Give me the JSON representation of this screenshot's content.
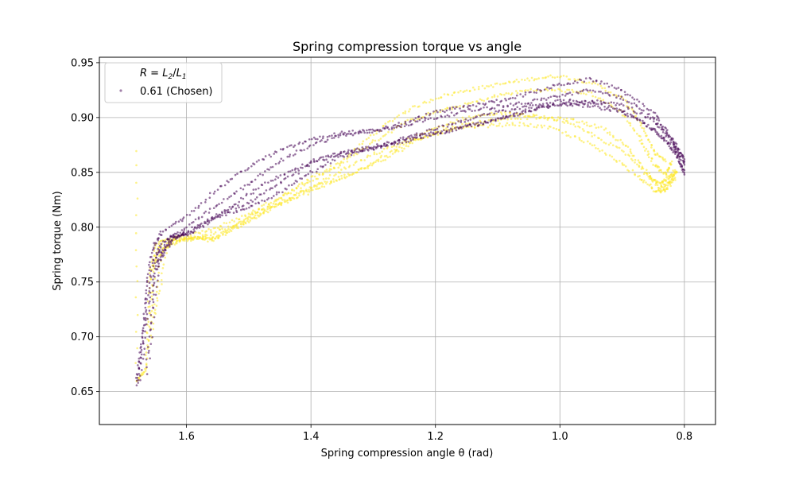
{
  "chart_data": {
    "type": "scatter",
    "title": "Spring compression torque vs angle",
    "xlabel": "Spring compression angle θ (rad)",
    "ylabel": "Spring torque (Nm)",
    "xlim": [
      1.74,
      0.75
    ],
    "ylim": [
      0.62,
      0.955
    ],
    "x_inverted": true,
    "xticks": [
      1.6,
      1.4,
      1.2,
      1.0,
      0.8
    ],
    "xtick_labels": [
      "1.6",
      "1.4",
      "1.2",
      "1.0",
      "0.8"
    ],
    "yticks": [
      0.65,
      0.7,
      0.75,
      0.8,
      0.85,
      0.9,
      0.95
    ],
    "ytick_labels": [
      "0.65",
      "0.70",
      "0.75",
      "0.80",
      "0.85",
      "0.90",
      "0.95"
    ],
    "grid": true,
    "legend": {
      "placement": "top-left",
      "title": "R = L2/L1",
      "entries": [
        "0.61 (Chosen)"
      ]
    },
    "series": [
      {
        "name": "0.61 (Chosen)",
        "color": "#440154",
        "traces": [
          [
            [
              1.68,
              0.655
            ],
            [
              1.672,
              0.69
            ],
            [
              1.665,
              0.74
            ],
            [
              1.655,
              0.78
            ],
            [
              1.64,
              0.795
            ],
            [
              1.6,
              0.81
            ],
            [
              1.55,
              0.835
            ],
            [
              1.5,
              0.855
            ],
            [
              1.45,
              0.87
            ],
            [
              1.4,
              0.88
            ],
            [
              1.35,
              0.886
            ],
            [
              1.3,
              0.888
            ],
            [
              1.25,
              0.895
            ],
            [
              1.2,
              0.905
            ],
            [
              1.15,
              0.91
            ],
            [
              1.1,
              0.915
            ],
            [
              1.05,
              0.922
            ],
            [
              1.0,
              0.93
            ],
            [
              0.95,
              0.935
            ],
            [
              0.9,
              0.925
            ],
            [
              0.85,
              0.905
            ],
            [
              0.82,
              0.88
            ],
            [
              0.8,
              0.86
            ]
          ],
          [
            [
              1.68,
              0.66
            ],
            [
              1.668,
              0.71
            ],
            [
              1.655,
              0.765
            ],
            [
              1.64,
              0.785
            ],
            [
              1.6,
              0.8
            ],
            [
              1.55,
              0.82
            ],
            [
              1.5,
              0.84
            ],
            [
              1.45,
              0.86
            ],
            [
              1.4,
              0.875
            ],
            [
              1.35,
              0.884
            ],
            [
              1.3,
              0.887
            ],
            [
              1.25,
              0.893
            ],
            [
              1.2,
              0.9
            ],
            [
              1.15,
              0.906
            ],
            [
              1.1,
              0.91
            ],
            [
              1.05,
              0.914
            ],
            [
              1.0,
              0.92
            ],
            [
              0.95,
              0.925
            ],
            [
              0.9,
              0.918
            ],
            [
              0.85,
              0.9
            ],
            [
              0.82,
              0.878
            ],
            [
              0.8,
              0.857
            ]
          ],
          [
            [
              1.675,
              0.66
            ],
            [
              1.66,
              0.73
            ],
            [
              1.645,
              0.775
            ],
            [
              1.62,
              0.79
            ],
            [
              1.6,
              0.795
            ],
            [
              1.55,
              0.81
            ],
            [
              1.5,
              0.818
            ],
            [
              1.45,
              0.832
            ],
            [
              1.4,
              0.85
            ],
            [
              1.35,
              0.865
            ],
            [
              1.3,
              0.872
            ],
            [
              1.25,
              0.88
            ],
            [
              1.2,
              0.89
            ],
            [
              1.15,
              0.898
            ],
            [
              1.1,
              0.905
            ],
            [
              1.05,
              0.91
            ],
            [
              1.0,
              0.915
            ],
            [
              0.95,
              0.915
            ],
            [
              0.9,
              0.912
            ],
            [
              0.85,
              0.898
            ],
            [
              0.82,
              0.88
            ],
            [
              0.8,
              0.862
            ]
          ],
          [
            [
              1.665,
              0.665
            ],
            [
              1.65,
              0.76
            ],
            [
              1.63,
              0.79
            ],
            [
              1.6,
              0.795
            ],
            [
              1.55,
              0.812
            ],
            [
              1.5,
              0.822
            ],
            [
              1.45,
              0.84
            ],
            [
              1.4,
              0.858
            ],
            [
              1.35,
              0.868
            ],
            [
              1.3,
              0.872
            ],
            [
              1.25,
              0.878
            ],
            [
              1.2,
              0.885
            ],
            [
              1.15,
              0.892
            ],
            [
              1.1,
              0.898
            ],
            [
              1.05,
              0.906
            ],
            [
              1.0,
              0.912
            ],
            [
              0.95,
              0.91
            ],
            [
              0.9,
              0.906
            ],
            [
              0.85,
              0.89
            ],
            [
              0.82,
              0.872
            ],
            [
              0.8,
              0.852
            ]
          ],
          [
            [
              1.66,
              0.68
            ],
            [
              1.645,
              0.77
            ],
            [
              1.62,
              0.79
            ],
            [
              1.58,
              0.798
            ],
            [
              1.53,
              0.818
            ],
            [
              1.48,
              0.838
            ],
            [
              1.43,
              0.852
            ],
            [
              1.38,
              0.864
            ],
            [
              1.33,
              0.87
            ],
            [
              1.28,
              0.876
            ],
            [
              1.23,
              0.884
            ],
            [
              1.18,
              0.888
            ],
            [
              1.13,
              0.894
            ],
            [
              1.08,
              0.902
            ],
            [
              1.03,
              0.91
            ],
            [
              0.98,
              0.914
            ],
            [
              0.93,
              0.912
            ],
            [
              0.88,
              0.9
            ],
            [
              0.84,
              0.885
            ],
            [
              0.81,
              0.866
            ],
            [
              0.8,
              0.848
            ]
          ]
        ]
      },
      {
        "name": "",
        "color": "#fde725",
        "traces": [
          [
            [
              1.68,
              0.87
            ],
            [
              1.68,
              0.66
            ],
            [
              1.665,
              0.67
            ],
            [
              1.66,
              0.75
            ],
            [
              1.65,
              0.785
            ],
            [
              1.6,
              0.79
            ],
            [
              1.55,
              0.79
            ],
            [
              1.5,
              0.81
            ],
            [
              1.45,
              0.825
            ],
            [
              1.4,
              0.845
            ],
            [
              1.35,
              0.86
            ],
            [
              1.3,
              0.885
            ],
            [
              1.25,
              0.905
            ],
            [
              1.2,
              0.918
            ],
            [
              1.15,
              0.925
            ],
            [
              1.1,
              0.93
            ],
            [
              1.05,
              0.935
            ],
            [
              1.0,
              0.938
            ],
            [
              0.95,
              0.932
            ],
            [
              0.9,
              0.918
            ],
            [
              0.87,
              0.895
            ],
            [
              0.85,
              0.87
            ],
            [
              0.83,
              0.86
            ]
          ],
          [
            [
              1.665,
              0.67
            ],
            [
              1.655,
              0.76
            ],
            [
              1.64,
              0.788
            ],
            [
              1.6,
              0.792
            ],
            [
              1.55,
              0.8
            ],
            [
              1.5,
              0.812
            ],
            [
              1.45,
              0.828
            ],
            [
              1.4,
              0.842
            ],
            [
              1.35,
              0.858
            ],
            [
              1.3,
              0.878
            ],
            [
              1.25,
              0.895
            ],
            [
              1.2,
              0.905
            ],
            [
              1.15,
              0.912
            ],
            [
              1.1,
              0.92
            ],
            [
              1.05,
              0.925
            ],
            [
              1.0,
              0.925
            ],
            [
              0.95,
              0.922
            ],
            [
              0.9,
              0.905
            ],
            [
              0.87,
              0.88
            ],
            [
              0.85,
              0.858
            ],
            [
              0.83,
              0.848
            ],
            [
              0.82,
              0.86
            ]
          ],
          [
            [
              1.66,
              0.69
            ],
            [
              1.65,
              0.77
            ],
            [
              1.62,
              0.79
            ],
            [
              1.58,
              0.79
            ],
            [
              1.53,
              0.8
            ],
            [
              1.48,
              0.815
            ],
            [
              1.43,
              0.828
            ],
            [
              1.38,
              0.84
            ],
            [
              1.33,
              0.85
            ],
            [
              1.28,
              0.862
            ],
            [
              1.23,
              0.88
            ],
            [
              1.18,
              0.89
            ],
            [
              1.13,
              0.896
            ],
            [
              1.08,
              0.9
            ],
            [
              1.03,
              0.9
            ],
            [
              0.98,
              0.898
            ],
            [
              0.93,
              0.89
            ],
            [
              0.89,
              0.872
            ],
            [
              0.86,
              0.85
            ],
            [
              0.84,
              0.836
            ],
            [
              0.825,
              0.84
            ],
            [
              0.815,
              0.852
            ]
          ],
          [
            [
              1.655,
              0.7
            ],
            [
              1.64,
              0.78
            ],
            [
              1.6,
              0.79
            ],
            [
              1.56,
              0.788
            ],
            [
              1.51,
              0.802
            ],
            [
              1.46,
              0.818
            ],
            [
              1.41,
              0.83
            ],
            [
              1.36,
              0.842
            ],
            [
              1.31,
              0.856
            ],
            [
              1.26,
              0.872
            ],
            [
              1.21,
              0.884
            ],
            [
              1.16,
              0.89
            ],
            [
              1.11,
              0.893
            ],
            [
              1.06,
              0.894
            ],
            [
              1.01,
              0.89
            ],
            [
              0.96,
              0.878
            ],
            [
              0.91,
              0.862
            ],
            [
              0.87,
              0.845
            ],
            [
              0.845,
              0.832
            ],
            [
              0.83,
              0.834
            ],
            [
              0.815,
              0.845
            ]
          ],
          [
            [
              1.65,
              0.72
            ],
            [
              1.63,
              0.785
            ],
            [
              1.59,
              0.789
            ],
            [
              1.55,
              0.792
            ],
            [
              1.5,
              0.806
            ],
            [
              1.45,
              0.822
            ],
            [
              1.4,
              0.836
            ],
            [
              1.35,
              0.852
            ],
            [
              1.3,
              0.866
            ],
            [
              1.25,
              0.878
            ],
            [
              1.2,
              0.89
            ],
            [
              1.15,
              0.9
            ],
            [
              1.1,
              0.904
            ],
            [
              1.05,
              0.902
            ],
            [
              1.0,
              0.898
            ],
            [
              0.95,
              0.885
            ],
            [
              0.9,
              0.87
            ],
            [
              0.86,
              0.848
            ],
            [
              0.84,
              0.84
            ],
            [
              0.825,
              0.845
            ],
            [
              0.812,
              0.85
            ]
          ]
        ]
      }
    ]
  }
}
